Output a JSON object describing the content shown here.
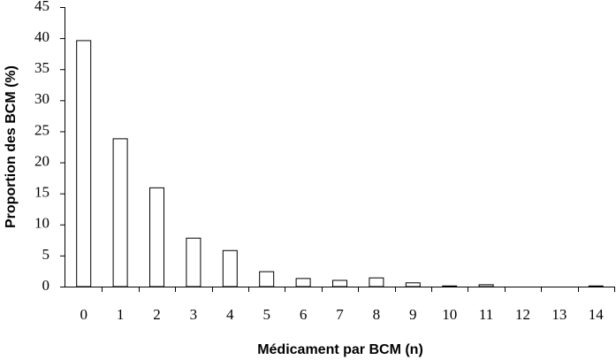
{
  "chart_data": {
    "type": "bar",
    "x_label": "Médicament par BCM (n)",
    "y_label": "Proportion des BCM (%)",
    "categories": [
      "0",
      "1",
      "2",
      "3",
      "4",
      "5",
      "6",
      "7",
      "8",
      "9",
      "10",
      "11",
      "12",
      "13",
      "14"
    ],
    "values": [
      39.6,
      23.8,
      15.9,
      7.8,
      5.8,
      2.4,
      1.3,
      1.0,
      1.4,
      0.6,
      0.1,
      0.3,
      0,
      0,
      0.1
    ],
    "color": "#ffffff",
    "ylim": [
      0,
      45
    ],
    "yticks": [
      0,
      5,
      10,
      15,
      20,
      25,
      30,
      35,
      40,
      45
    ],
    "grid": false
  }
}
